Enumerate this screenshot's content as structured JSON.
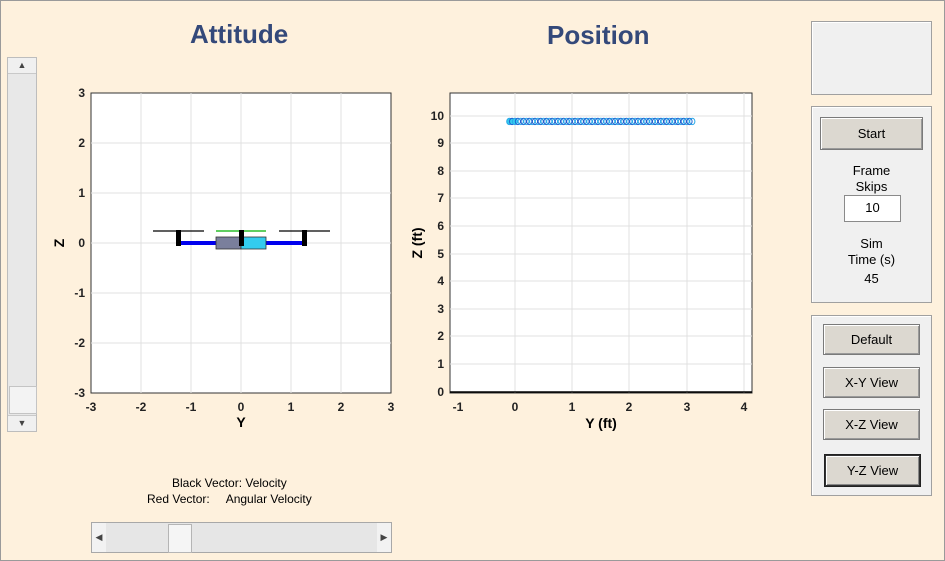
{
  "titles": {
    "attitude": "Attitude",
    "position": "Position"
  },
  "attitude_plot": {
    "xlabel": "Y",
    "ylabel": "Z",
    "xticks": [
      "-3",
      "-2",
      "-1",
      "0",
      "1",
      "2",
      "3"
    ],
    "yticks": [
      "3",
      "2",
      "1",
      "0",
      "-1",
      "-2",
      "-3"
    ]
  },
  "position_plot": {
    "xlabel": "Y (ft)",
    "ylabel": "Z (ft)",
    "xticks": [
      "-1",
      "0",
      "1",
      "2",
      "3",
      "4"
    ],
    "yticks": [
      "10",
      "9",
      "8",
      "7",
      "6",
      "5",
      "4",
      "3",
      "2",
      "1",
      "0"
    ]
  },
  "legend": {
    "black_vector": "Black Vector: Velocity",
    "red_vector": "Red Vector:     Angular Velocity"
  },
  "controls": {
    "start_label": "Start",
    "frame_skips_label_1": "Frame",
    "frame_skips_label_2": "Skips",
    "frame_skips_value": "10",
    "sim_time_label_1": "Sim",
    "sim_time_label_2": "Time (s)",
    "sim_time_value": "45"
  },
  "views": {
    "default_label": "Default",
    "xy_label": "X-Y View",
    "xz_label": "X-Z View",
    "yz_label": "Y-Z View"
  },
  "scrollbars": {
    "up_arrow": "▲",
    "down_arrow": "▼",
    "left_arrow": "◀",
    "right_arrow": "▶"
  }
}
